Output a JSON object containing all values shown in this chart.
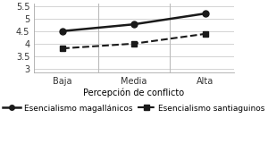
{
  "x_labels": [
    "Baja",
    "Media",
    "Alta"
  ],
  "x_values": [
    0,
    1,
    2
  ],
  "series": [
    {
      "name": "Esencialismo magallánicos",
      "values": [
        4.51,
        4.78,
        5.21
      ],
      "linestyle": "-",
      "marker": "o",
      "color": "#1a1a1a",
      "linewidth": 1.8,
      "markersize": 5
    },
    {
      "name": "Esencialismo santiaguinos",
      "values": [
        3.82,
        4.01,
        4.4
      ],
      "linestyle": "--",
      "marker": "s",
      "color": "#1a1a1a",
      "linewidth": 1.5,
      "markersize": 4
    }
  ],
  "xlabel": "Percepción de conflicto",
  "ylim": [
    2.85,
    5.6
  ],
  "yticks": [
    3.0,
    3.5,
    4.0,
    4.5,
    5.0,
    5.5
  ],
  "ytick_labels": [
    "3",
    "3.5",
    "4",
    "4.5",
    "5",
    "5.5"
  ],
  "background_color": "#ffffff",
  "vline_color": "#bbbbbb",
  "grid_color": "#cccccc",
  "axis_fontsize": 7,
  "legend_fontsize": 6.5
}
